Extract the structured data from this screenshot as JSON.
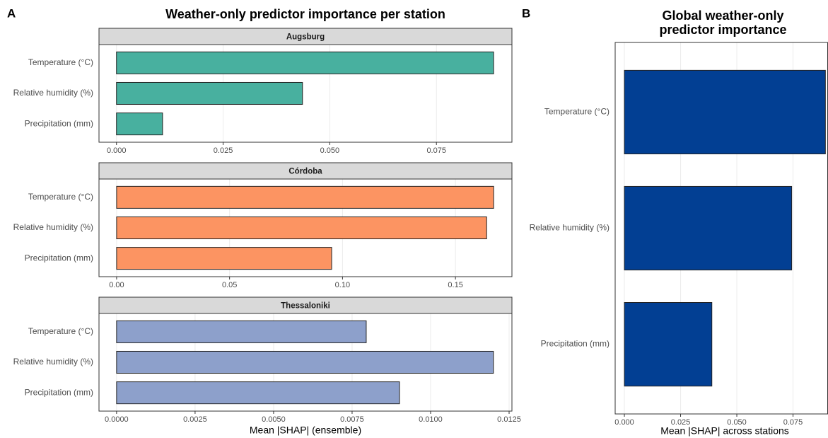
{
  "chart_data": [
    {
      "type": "bar",
      "panel": "A",
      "title": "Weather-only predictor importance per station",
      "x_label": "Mean |SHAP| (ensemble)",
      "facets": [
        {
          "strip": "Augsburg",
          "color": "#48b09f",
          "categories": [
            "Temperature (°C)",
            "Relative humidity (%)",
            "Precipitation (mm)"
          ],
          "values": [
            0.0884,
            0.0436,
            0.0108
          ],
          "xlim": [
            -0.0041,
            0.0927
          ],
          "xticks": [
            {
              "value": 0,
              "label": "0.000"
            },
            0.025,
            {
              "value": 0.05,
              "label": "0.050"
            },
            0.075
          ]
        },
        {
          "strip": "Córdoba",
          "color": "#fc9462",
          "categories": [
            "Temperature (°C)",
            "Relative humidity (%)",
            "Precipitation (mm)"
          ],
          "values": [
            0.1669,
            0.1638,
            0.0952
          ],
          "xlim": [
            -0.0078,
            0.175
          ],
          "xticks": [
            {
              "value": 0,
              "label": "0.00"
            },
            0.05,
            {
              "value": 0.1,
              "label": "0.10"
            },
            0.15
          ]
        },
        {
          "strip": "Thessaloniki",
          "color": "#8da0cb",
          "categories": [
            "Temperature (°C)",
            "Relative humidity (%)",
            "Precipitation (mm)"
          ],
          "values": [
            0.00795,
            0.012,
            0.00901
          ],
          "xlim": [
            -0.00056,
            0.01259
          ],
          "xticks": [
            {
              "value": 0,
              "label": "0.0000"
            },
            0.0025,
            {
              "value": 0.005,
              "label": "0.0050"
            },
            0.0075,
            {
              "value": 0.01,
              "label": "0.0100"
            },
            0.0125
          ]
        }
      ]
    },
    {
      "type": "bar",
      "panel": "B",
      "title": "Global weather-only predictor importance",
      "x_label": "Mean |SHAP| across stations",
      "facets": [
        {
          "color": "#023f93",
          "categories": [
            "Temperature (°C)",
            "Relative humidity (%)",
            "Precipitation (mm)"
          ],
          "values": [
            0.0894,
            0.0744,
            0.0389
          ],
          "xlim": [
            -0.0041,
            0.0904
          ],
          "xticks": [
            {
              "value": 0,
              "label": "0.000"
            },
            0.025,
            {
              "value": 0.05,
              "label": "0.050"
            },
            0.075
          ]
        }
      ]
    }
  ]
}
